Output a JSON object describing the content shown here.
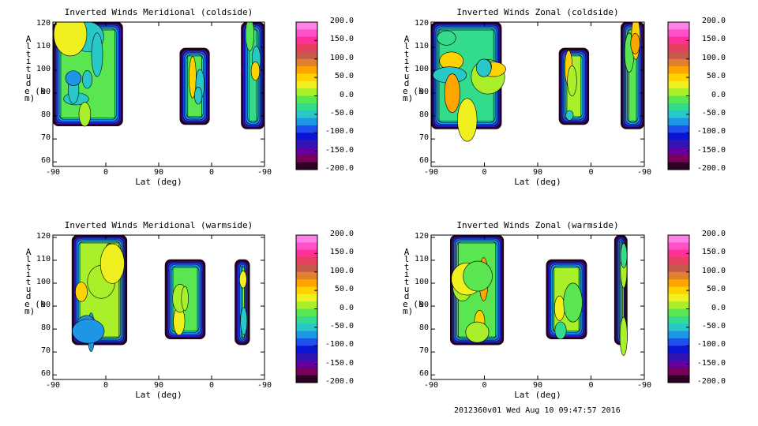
{
  "chart_data": [
    {
      "type": "contour",
      "title": "Inverted Winds Meridional (coldside)",
      "xlabel": "Lat (deg)",
      "ylabel": "Altitude (km)",
      "xticks": [
        "-90",
        "0",
        "90",
        "0",
        "-90"
      ],
      "yticks": [
        "60",
        "70",
        "80",
        "90",
        "100",
        "110",
        "120"
      ],
      "ylim": [
        58,
        121
      ],
      "colorbar_ticks": [
        "200.0",
        "150.0",
        "100.0",
        "50.0",
        "0.0",
        "-50.0",
        "-100.0",
        "-150.0",
        "-200.0"
      ],
      "colorbar_range": [
        -200,
        200
      ]
    },
    {
      "type": "contour",
      "title": "Inverted Winds Zonal (coldside)",
      "xlabel": "Lat (deg)",
      "ylabel": "Altitude (km)",
      "xticks": [
        "-90",
        "0",
        "90",
        "0",
        "-90"
      ],
      "yticks": [
        "60",
        "70",
        "80",
        "90",
        "100",
        "110",
        "120"
      ],
      "ylim": [
        58,
        121
      ],
      "colorbar_ticks": [
        "200.0",
        "150.0",
        "100.0",
        "50.0",
        "0.0",
        "-50.0",
        "-100.0",
        "-150.0",
        "-200.0"
      ],
      "colorbar_range": [
        -200,
        200
      ]
    },
    {
      "type": "contour",
      "title": "Inverted Winds Meridional (warmside)",
      "xlabel": "Lat (deg)",
      "ylabel": "Altitude (km)",
      "xticks": [
        "-90",
        "0",
        "90",
        "0",
        "-90"
      ],
      "yticks": [
        "60",
        "70",
        "80",
        "90",
        "100",
        "110",
        "120"
      ],
      "ylim": [
        58,
        121
      ],
      "colorbar_ticks": [
        "200.0",
        "150.0",
        "100.0",
        "50.0",
        "0.0",
        "-50.0",
        "-100.0",
        "-150.0",
        "-200.0"
      ],
      "colorbar_range": [
        -200,
        200
      ]
    },
    {
      "type": "contour",
      "title": "Inverted Winds Zonal (warmside)",
      "xlabel": "Lat (deg)",
      "ylabel": "Altitude (km)",
      "xticks": [
        "-90",
        "0",
        "90",
        "0",
        "-90"
      ],
      "yticks": [
        "60",
        "70",
        "80",
        "90",
        "100",
        "110",
        "120"
      ],
      "ylim": [
        58,
        121
      ],
      "colorbar_ticks": [
        "200.0",
        "150.0",
        "100.0",
        "50.0",
        "0.0",
        "-50.0",
        "-100.0",
        "-150.0",
        "-200.0"
      ],
      "colorbar_range": [
        -200,
        200
      ]
    }
  ],
  "colorbar_colors": [
    "#ff80e6",
    "#ff50c8",
    "#ff3096",
    "#e64060",
    "#c85a4b",
    "#e08030",
    "#ffa500",
    "#ffd200",
    "#f0f020",
    "#aaf02a",
    "#5ae650",
    "#32dc8c",
    "#28c8c8",
    "#1e96e6",
    "#1e50f0",
    "#0a14d2",
    "#3214b4",
    "#6400a0",
    "#78005a",
    "#2d0023"
  ],
  "footer": "2012360v01 Wed Aug 10 09:47:57 2016"
}
